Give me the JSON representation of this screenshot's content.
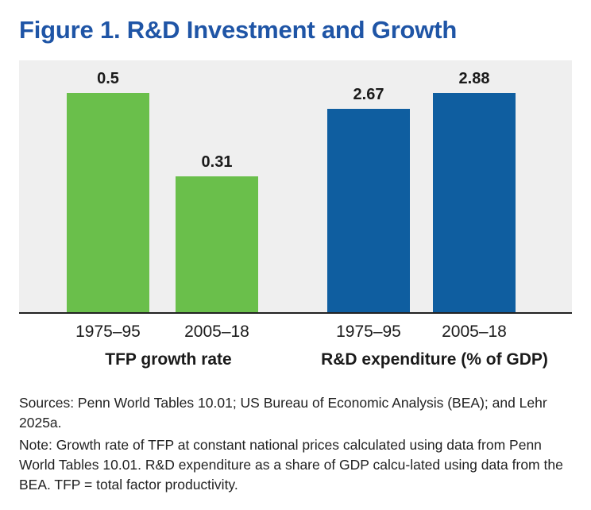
{
  "title": "Figure 1. R&D Investment and Growth",
  "chart_data": {
    "type": "bar",
    "title": "Figure 1. R&D Investment and Growth",
    "groups": [
      {
        "name": "TFP growth rate",
        "color": "#6abf4b",
        "ylim": [
          0,
          0.5745
        ],
        "categories": [
          "1975–95",
          "2005–18"
        ],
        "values": [
          0.5,
          0.31
        ],
        "labels": [
          "0.5",
          "0.31"
        ]
      },
      {
        "name": "R&D expenditure (% of GDP)",
        "color": "#0f5ea0",
        "ylim": [
          0,
          3.31
        ],
        "categories": [
          "1975–95",
          "2005–18"
        ],
        "values": [
          2.67,
          2.88
        ],
        "labels": [
          "2.67",
          "2.88"
        ]
      }
    ],
    "grid": false,
    "legend": "none"
  },
  "notes": {
    "sources": "Sources: Penn World Tables 10.01; US Bureau of Economic Analysis (BEA); and Lehr 2025a.",
    "note": "Note: Growth rate of TFP at constant national prices calculated using data from Penn World Tables 10.01. R&D expenditure as a share of GDP calcu-lated using data from the BEA. TFP = total factor productivity."
  }
}
